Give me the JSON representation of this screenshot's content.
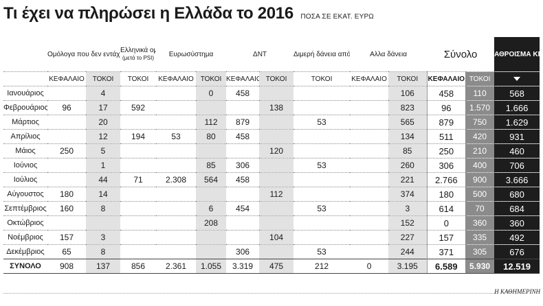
{
  "title": "Τι έχει να πληρώσει η Ελλάδα το 2016",
  "subtitle": "ΠΟΣΑ ΣΕ ΕΚΑΤ. ΕΥΡΩ",
  "headers": {
    "psi": "Ομόλογα που δεν εντάχθηκαν στο PSI",
    "greek_bonds": "Ελληνικά ομόλογα",
    "greek_bonds_note": "(μετά το PSI)",
    "eurosystem": "Ευρωσύστημα",
    "imf": "ΔΝΤ",
    "bilateral": "Διμερή δάνεια από χώρες της Ευρωζώνης",
    "other": "Αλλα δάνεια",
    "sum": "Σύνολο",
    "total": "ΑΘΡΟΙΣΜΑ ΚΕΦΑΛΑΙΟΥ ΚΑΙ ΤΟΚΩΝ"
  },
  "sub": {
    "principal": "ΚΕΦΑΛΑΙΟ",
    "interest": "ΤΟΚΟΙ"
  },
  "rows": [
    {
      "month": "Ιανουάριος",
      "v": [
        "",
        "4",
        "",
        "",
        "0",
        "458",
        "",
        "",
        "",
        "106",
        "458",
        "110",
        "568"
      ]
    },
    {
      "month": "Φεβρουάριος",
      "v": [
        "96",
        "17",
        "592",
        "",
        "",
        "",
        "138",
        "",
        "",
        "823",
        "96",
        "1.570",
        "1.666"
      ]
    },
    {
      "month": "Μάρτιος",
      "v": [
        "",
        "20",
        "",
        "",
        "112",
        "879",
        "",
        "53",
        "",
        "565",
        "879",
        "750",
        "1.629"
      ]
    },
    {
      "month": "Απρίλιος",
      "v": [
        "",
        "12",
        "194",
        "53",
        "80",
        "458",
        "",
        "",
        "",
        "134",
        "511",
        "420",
        "931"
      ]
    },
    {
      "month": "Μάιος",
      "v": [
        "250",
        "5",
        "",
        "",
        "",
        "",
        "120",
        "",
        "",
        "85",
        "250",
        "210",
        "460"
      ]
    },
    {
      "month": "Ιούνιος",
      "v": [
        "",
        "1",
        "",
        "",
        "85",
        "306",
        "",
        "53",
        "",
        "260",
        "306",
        "400",
        "706"
      ]
    },
    {
      "month": "Ιούλιος",
      "v": [
        "",
        "44",
        "71",
        "2.308",
        "564",
        "458",
        "",
        "",
        "",
        "221",
        "2.766",
        "900",
        "3.666"
      ]
    },
    {
      "month": "Αύγουστος",
      "v": [
        "180",
        "14",
        "",
        "",
        "",
        "",
        "112",
        "",
        "",
        "374",
        "180",
        "500",
        "680"
      ]
    },
    {
      "month": "Σεπτέμβριος",
      "v": [
        "160",
        "8",
        "",
        "",
        "6",
        "454",
        "",
        "53",
        "",
        "3",
        "614",
        "70",
        "684"
      ]
    },
    {
      "month": "Οκτώβριος",
      "v": [
        "",
        "",
        "",
        "",
        "208",
        "",
        "",
        "",
        "",
        "152",
        "0",
        "360",
        "360"
      ]
    },
    {
      "month": "Νοέμβριος",
      "v": [
        "157",
        "3",
        "",
        "",
        "",
        "",
        "104",
        "",
        "",
        "227",
        "157",
        "335",
        "492"
      ]
    },
    {
      "month": "Δεκέμβριος",
      "v": [
        "65",
        "8",
        "",
        "",
        "",
        "306",
        "",
        "53",
        "",
        "244",
        "371",
        "305",
        "676"
      ]
    }
  ],
  "totals": {
    "label": "ΣΥΝΟΛΟ",
    "v": [
      "908",
      "137",
      "856",
      "2.361",
      "1.055",
      "3.319",
      "475",
      "212",
      "0",
      "3.195",
      "6.589",
      "5.930",
      "12.519"
    ]
  },
  "source": "Η ΚΑΘΗΜΕΡΙΝΗ"
}
